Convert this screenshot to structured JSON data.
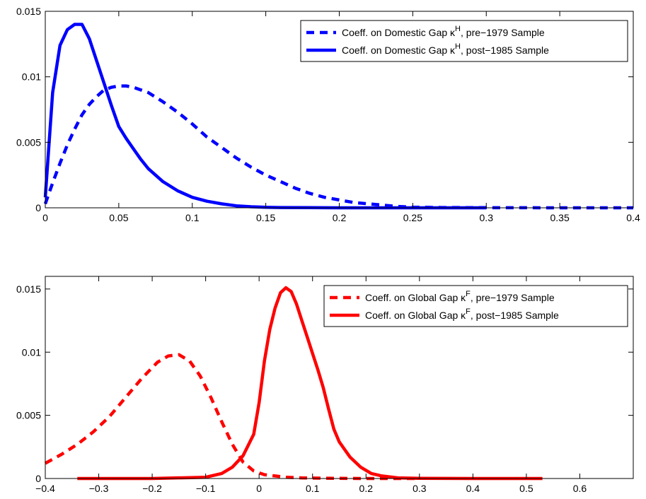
{
  "chart_data": [
    {
      "type": "line",
      "title": "",
      "xlabel": "",
      "ylabel": "",
      "xlim": [
        0,
        0.4
      ],
      "ylim": [
        0,
        0.015
      ],
      "xticks": [
        0,
        0.05,
        0.1,
        0.15,
        0.2,
        0.25,
        0.3,
        0.35,
        0.4
      ],
      "xtick_labels": [
        "0",
        "0.05",
        "0.1",
        "0.15",
        "0.2",
        "0.25",
        "0.3",
        "0.35",
        "0.4"
      ],
      "yticks": [
        0,
        0.005,
        0.01,
        0.015
      ],
      "ytick_labels": [
        "0",
        "0.005",
        "0.01",
        "0.015"
      ],
      "legend_position": "top-right",
      "series": [
        {
          "name": "Coeff. on Domestic Gap κ^H, pre−1979 Sample",
          "legend_main": "Coeff. on Domestic Gap κ",
          "legend_sup": "H",
          "legend_rest": ", pre−1979 Sample",
          "color": "#0000ff",
          "style": "dashed",
          "x": [
            0,
            0.005,
            0.01,
            0.015,
            0.02,
            0.025,
            0.03,
            0.035,
            0.04,
            0.045,
            0.05,
            0.055,
            0.06,
            0.065,
            0.07,
            0.08,
            0.09,
            0.1,
            0.11,
            0.12,
            0.13,
            0.14,
            0.15,
            0.16,
            0.17,
            0.18,
            0.19,
            0.2,
            0.21,
            0.22,
            0.23,
            0.24,
            0.25,
            0.27,
            0.3,
            0.35,
            0.4
          ],
          "y": [
            0.0003,
            0.0019,
            0.0034,
            0.0048,
            0.006,
            0.0071,
            0.0079,
            0.0085,
            0.009,
            0.0092,
            0.0093,
            0.0093,
            0.0092,
            0.009,
            0.0088,
            0.0081,
            0.0073,
            0.0064,
            0.0054,
            0.0046,
            0.0038,
            0.0031,
            0.0025,
            0.002,
            0.0015,
            0.0011,
            0.0008,
            0.0006,
            0.0004,
            0.0003,
            0.0002,
            0.0001,
            5e-05,
            2e-05,
            1e-05,
            0.0,
            0.0
          ]
        },
        {
          "name": "Coeff. on Domestic Gap κ^H, post−1985 Sample",
          "legend_main": "Coeff. on Domestic Gap κ",
          "legend_sup": "H",
          "legend_rest": ", post−1985 Sample",
          "color": "#0000ff",
          "style": "solid",
          "x": [
            0,
            0.005,
            0.01,
            0.015,
            0.02,
            0.025,
            0.03,
            0.035,
            0.04,
            0.045,
            0.05,
            0.055,
            0.06,
            0.065,
            0.07,
            0.075,
            0.08,
            0.09,
            0.1,
            0.11,
            0.12,
            0.13,
            0.14,
            0.15,
            0.16,
            0.18,
            0.2,
            0.22,
            0.25,
            0.3
          ],
          "y": [
            0.0008,
            0.0088,
            0.0124,
            0.0136,
            0.014,
            0.014,
            0.0129,
            0.0112,
            0.0095,
            0.0078,
            0.0062,
            0.0053,
            0.0045,
            0.0037,
            0.003,
            0.0025,
            0.002,
            0.0013,
            0.0008,
            0.0005,
            0.0003,
            0.00015,
            8e-05,
            4e-05,
            2e-05,
            1e-05,
            0.0,
            0.0,
            0.0,
            0.0
          ]
        }
      ]
    },
    {
      "type": "line",
      "title": "",
      "xlabel": "",
      "ylabel": "",
      "xlim": [
        -0.4,
        0.7
      ],
      "ylim": [
        0,
        0.016
      ],
      "xticks": [
        -0.4,
        -0.3,
        -0.2,
        -0.1,
        0,
        0.1,
        0.2,
        0.3,
        0.4,
        0.5,
        0.6
      ],
      "xtick_labels": [
        "−0.4",
        "−0.3",
        "−0.2",
        "−0.1",
        "0",
        "0.1",
        "0.2",
        "0.3",
        "0.4",
        "0.5",
        "0.6"
      ],
      "yticks": [
        0,
        0.005,
        0.01,
        0.015
      ],
      "ytick_labels": [
        "0",
        "0.005",
        "0.01",
        "0.015"
      ],
      "legend_position": "top-right",
      "series": [
        {
          "name": "Coeff. on Global Gap κ^F, pre−1979 Sample",
          "legend_main": "Coeff. on Global Gap κ",
          "legend_sup": "F",
          "legend_rest": ", pre−1979 Sample",
          "color": "#ff0000",
          "style": "dashed",
          "x": [
            -0.4,
            -0.37,
            -0.34,
            -0.31,
            -0.28,
            -0.25,
            -0.22,
            -0.19,
            -0.17,
            -0.15,
            -0.13,
            -0.11,
            -0.09,
            -0.07,
            -0.05,
            -0.03,
            -0.01,
            0.01,
            0.03,
            0.05,
            0.08,
            0.12,
            0.2,
            0.3
          ],
          "y": [
            0.0012,
            0.0019,
            0.0027,
            0.0037,
            0.0049,
            0.0064,
            0.0079,
            0.0092,
            0.0097,
            0.0098,
            0.0093,
            0.0081,
            0.0064,
            0.0045,
            0.0027,
            0.0013,
            0.0006,
            0.0003,
            0.0002,
            0.0001,
            5e-05,
            2e-05,
            0.0,
            0.0
          ]
        },
        {
          "name": "Coeff. on Global Gap κ^F, post−1985 Sample",
          "legend_main": "Coeff. on Global Gap κ",
          "legend_sup": "F",
          "legend_rest": ", post−1985 Sample",
          "color": "#ff0000",
          "style": "solid",
          "x": [
            -0.34,
            -0.2,
            -0.1,
            -0.07,
            -0.05,
            -0.03,
            -0.01,
            0.0,
            0.01,
            0.02,
            0.03,
            0.04,
            0.05,
            0.06,
            0.07,
            0.08,
            0.09,
            0.1,
            0.11,
            0.12,
            0.13,
            0.14,
            0.15,
            0.17,
            0.19,
            0.21,
            0.23,
            0.26,
            0.3,
            0.4,
            0.53
          ],
          "y": [
            0.0,
            0.0,
            0.0001,
            0.0004,
            0.0009,
            0.0018,
            0.0035,
            0.006,
            0.0093,
            0.0118,
            0.0135,
            0.0147,
            0.0151,
            0.0148,
            0.0138,
            0.0125,
            0.0112,
            0.0099,
            0.0086,
            0.0072,
            0.0055,
            0.0039,
            0.0029,
            0.0017,
            0.0009,
            0.0004,
            0.0002,
            5e-05,
            1e-05,
            0.0,
            0.0
          ]
        }
      ]
    }
  ]
}
